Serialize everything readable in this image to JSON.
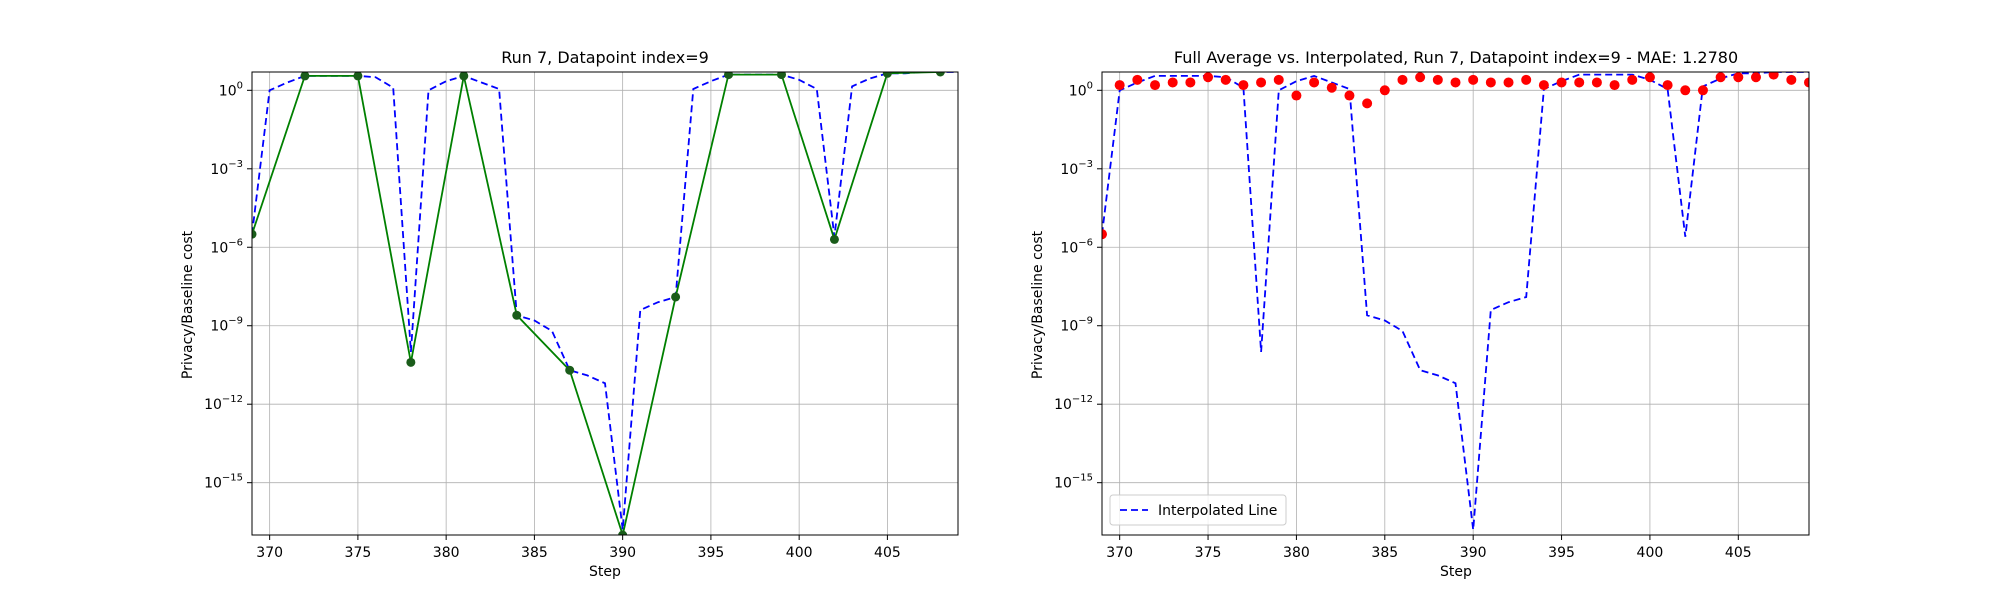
{
  "chart_data": [
    {
      "type": "line",
      "title": "Run 7, Datapoint index=9",
      "xlabel": "Step",
      "ylabel": "Privacy/Baseline cost",
      "xlim": [
        369,
        409
      ],
      "ylim_log10": [
        -17.0,
        0.7
      ],
      "yscale": "log",
      "grid": true,
      "x_ticks": [
        370,
        375,
        380,
        385,
        390,
        395,
        400,
        405
      ],
      "y_ticks": [
        {
          "mant": "10",
          "exp": "0",
          "log10": 0
        },
        {
          "mant": "10",
          "exp": "−3",
          "log10": -3
        },
        {
          "mant": "10",
          "exp": "−6",
          "log10": -6
        },
        {
          "mant": "10",
          "exp": "−9",
          "log10": -9
        },
        {
          "mant": "10",
          "exp": "−12",
          "log10": -12
        },
        {
          "mant": "10",
          "exp": "−15",
          "log10": -15
        }
      ],
      "series": [
        {
          "style": "dashed",
          "color": "#0000ff",
          "x": [
            369,
            370,
            371,
            372,
            373,
            374,
            375,
            376,
            377,
            378,
            379,
            380,
            381,
            382,
            383,
            384,
            385,
            386,
            387,
            388,
            389,
            390,
            391,
            392,
            393,
            394,
            395,
            396,
            397,
            398,
            399,
            400,
            401,
            402,
            403,
            404,
            405,
            406,
            407,
            408,
            409
          ],
          "log10_y": [
            -5.5,
            0.0,
            0.3,
            0.55,
            0.55,
            0.55,
            0.55,
            0.5,
            0.1,
            -10.0,
            0.0,
            0.35,
            0.55,
            0.3,
            0.05,
            -8.6,
            -8.8,
            -9.2,
            -10.7,
            -10.9,
            -11.2,
            -16.8,
            -8.4,
            -8.1,
            -7.9,
            0.05,
            0.35,
            0.6,
            0.6,
            0.6,
            0.6,
            0.4,
            0.05,
            -5.6,
            0.15,
            0.45,
            0.65,
            0.65,
            0.7,
            0.7,
            0.7
          ]
        },
        {
          "style": "solid-markers",
          "color": "#008000",
          "marker_color": "#1a5c1a",
          "x": [
            369,
            372,
            375,
            378,
            381,
            384,
            387,
            390,
            393,
            396,
            399,
            402,
            405,
            408
          ],
          "log10_y": [
            -5.5,
            0.55,
            0.55,
            -10.4,
            0.55,
            -8.6,
            -10.7,
            -17.0,
            -7.9,
            0.6,
            0.6,
            -5.7,
            0.65,
            0.7
          ]
        }
      ]
    },
    {
      "type": "line",
      "title": "Full Average vs. Interpolated, Run 7, Datapoint index=9 - MAE: 1.2780",
      "xlabel": "Step",
      "ylabel": "Privacy/Baseline cost",
      "xlim": [
        369,
        409
      ],
      "ylim_log10": [
        -17.0,
        0.7
      ],
      "yscale": "log",
      "grid": true,
      "legend_placement": "bottom-left",
      "x_ticks": [
        370,
        375,
        380,
        385,
        390,
        395,
        400,
        405
      ],
      "y_ticks": [
        {
          "mant": "10",
          "exp": "0",
          "log10": 0
        },
        {
          "mant": "10",
          "exp": "−3",
          "log10": -3
        },
        {
          "mant": "10",
          "exp": "−6",
          "log10": -6
        },
        {
          "mant": "10",
          "exp": "−9",
          "log10": -9
        },
        {
          "mant": "10",
          "exp": "−12",
          "log10": -12
        },
        {
          "mant": "10",
          "exp": "−15",
          "log10": -15
        }
      ],
      "series": [
        {
          "name": "Interpolated Line",
          "style": "dashed",
          "color": "#0000ff",
          "x": [
            369,
            370,
            371,
            372,
            373,
            374,
            375,
            376,
            377,
            378,
            379,
            380,
            381,
            382,
            383,
            384,
            385,
            386,
            387,
            388,
            389,
            390,
            391,
            392,
            393,
            394,
            395,
            396,
            397,
            398,
            399,
            400,
            401,
            402,
            403,
            404,
            405,
            406,
            407,
            408,
            409
          ],
          "log10_y": [
            -5.5,
            0.0,
            0.3,
            0.55,
            0.55,
            0.55,
            0.55,
            0.5,
            0.1,
            -10.0,
            0.0,
            0.35,
            0.55,
            0.3,
            0.05,
            -8.6,
            -8.8,
            -9.2,
            -10.7,
            -10.9,
            -11.2,
            -16.8,
            -8.4,
            -8.1,
            -7.9,
            0.05,
            0.35,
            0.6,
            0.6,
            0.6,
            0.6,
            0.4,
            0.05,
            -5.6,
            0.15,
            0.45,
            0.65,
            0.65,
            0.7,
            0.7,
            0.7
          ]
        },
        {
          "style": "scatter",
          "color": "#ff0000",
          "x": [
            369,
            370,
            371,
            372,
            373,
            374,
            375,
            376,
            377,
            378,
            379,
            380,
            381,
            382,
            383,
            384,
            385,
            386,
            387,
            388,
            389,
            390,
            391,
            392,
            393,
            394,
            395,
            396,
            397,
            398,
            399,
            400,
            401,
            402,
            403,
            404,
            405,
            406,
            407,
            408,
            409
          ],
          "log10_y": [
            -5.5,
            0.2,
            0.4,
            0.2,
            0.3,
            0.3,
            0.5,
            0.4,
            0.2,
            0.3,
            0.4,
            -0.2,
            0.3,
            0.1,
            -0.2,
            -0.5,
            0.0,
            0.4,
            0.5,
            0.4,
            0.3,
            0.4,
            0.3,
            0.3,
            0.4,
            0.2,
            0.3,
            0.3,
            0.3,
            0.2,
            0.4,
            0.5,
            0.2,
            0.0,
            0.0,
            0.5,
            0.5,
            0.5,
            0.6,
            0.4,
            0.3
          ]
        }
      ]
    }
  ]
}
